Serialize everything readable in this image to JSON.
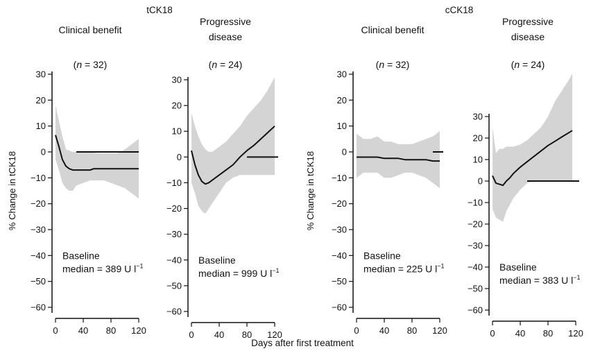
{
  "group_titles": [
    "tCK18",
    "cCK18"
  ],
  "x_axis_label": "Days after first treatment",
  "colors": {
    "band": "#d4d4d4",
    "line": "#111111",
    "axis": "#111111"
  },
  "chart_data": [
    {
      "type": "area",
      "group": "tCK18",
      "title": [
        "Clinical benefit"
      ],
      "n_label": [
        "(",
        "n",
        " = 32)"
      ],
      "ylabel": "% Change in tCK18",
      "xlim": [
        -5,
        125
      ],
      "ylim": [
        -62,
        32
      ],
      "xticks": [
        0,
        40,
        80,
        120
      ],
      "yticks": [
        30,
        20,
        10,
        0,
        -10,
        -20,
        -30,
        -40,
        -50,
        -60
      ],
      "baseline_line": "Baseline",
      "median_label": "median = 389 U l",
      "median_sup": "−1",
      "series": [
        {
          "x": [
            0,
            5,
            10,
            15,
            20,
            25,
            30,
            40,
            50,
            55,
            60,
            70,
            80,
            90,
            100,
            110,
            120
          ],
          "y": [
            6.5,
            2,
            -3,
            -5.5,
            -6.5,
            -7,
            -7,
            -7,
            -7,
            -6.5,
            -6.5,
            -6.5,
            -6.5,
            -6.5,
            -6.5,
            -6.5,
            -6.5
          ]
        }
      ],
      "band": {
        "x": [
          0,
          5,
          10,
          15,
          20,
          25,
          30,
          40,
          50,
          60,
          70,
          80,
          90,
          100,
          110,
          120
        ],
        "upper": [
          18,
          12,
          6,
          1,
          0.5,
          0,
          0,
          0,
          0,
          -0.5,
          -0.5,
          -0.5,
          -0.5,
          1,
          3,
          5
        ],
        "lower": [
          -3,
          -7,
          -12,
          -14,
          -15,
          -15,
          -13,
          -12,
          -11,
          -11,
          -11,
          -12,
          -13,
          -14,
          -16,
          -18
        ]
      },
      "zero_line": [
        30,
        120
      ]
    },
    {
      "type": "area",
      "group": "tCK18",
      "title": [
        "Progressive",
        "disease"
      ],
      "n_label": [
        "(",
        "n",
        " = 24)"
      ],
      "ylabel": "",
      "xlim": [
        -5,
        125
      ],
      "ylim": [
        -62,
        32
      ],
      "xticks": [
        0,
        40,
        80,
        120
      ],
      "yticks": [
        30,
        20,
        10,
        0,
        -10,
        -20,
        -30,
        -40,
        -50,
        -60
      ],
      "baseline_line": "Baseline",
      "median_label": "median = 999 U l",
      "median_sup": "−1",
      "series": [
        {
          "x": [
            0,
            5,
            10,
            15,
            20,
            25,
            30,
            40,
            50,
            60,
            70,
            80,
            90,
            100,
            110,
            120
          ],
          "y": [
            2.5,
            -3,
            -7,
            -9.5,
            -10.5,
            -10,
            -9,
            -7,
            -5,
            -3,
            0,
            2.5,
            4.5,
            7,
            9.5,
            12
          ]
        }
      ],
      "band": {
        "x": [
          0,
          5,
          10,
          15,
          20,
          25,
          30,
          40,
          50,
          60,
          70,
          80,
          90,
          100,
          110,
          120
        ],
        "upper": [
          17,
          12,
          8,
          5,
          3,
          2,
          2,
          4,
          6,
          9,
          12,
          16,
          19,
          22,
          26,
          31
        ],
        "lower": [
          -10,
          -14,
          -19,
          -21,
          -22,
          -20,
          -18,
          -14,
          -10,
          -8,
          -7,
          -7,
          -7,
          -7,
          -7,
          -7
        ]
      },
      "zero_line": [
        80,
        125
      ]
    },
    {
      "type": "area",
      "group": "cCK18",
      "title": [
        "Clinical benefit"
      ],
      "n_label": [
        "(",
        "n",
        " = 32)"
      ],
      "ylabel": "% Change in tCK18",
      "xlim": [
        -5,
        125
      ],
      "ylim": [
        -62,
        32
      ],
      "xticks": [
        0,
        40,
        80,
        120
      ],
      "yticks": [
        30,
        20,
        10,
        0,
        -10,
        -20,
        -30,
        -40,
        -50,
        -60
      ],
      "baseline_line": "Baseline",
      "median_label": "median = 225 U l",
      "median_sup": "−1",
      "series": [
        {
          "x": [
            0,
            10,
            20,
            30,
            40,
            50,
            60,
            70,
            80,
            90,
            100,
            110,
            120
          ],
          "y": [
            -2,
            -2,
            -2,
            -2,
            -2.5,
            -2.5,
            -2.5,
            -3,
            -3,
            -3,
            -3,
            -3.5,
            -3.5
          ]
        }
      ],
      "band": {
        "x": [
          0,
          10,
          20,
          30,
          40,
          50,
          60,
          70,
          80,
          90,
          100,
          110,
          120
        ],
        "upper": [
          7,
          5,
          5,
          6,
          4,
          4,
          3,
          3,
          3,
          4,
          5,
          6,
          8
        ],
        "lower": [
          -10,
          -8,
          -8,
          -8,
          -10,
          -10,
          -9,
          -8,
          -8,
          -9,
          -10,
          -12,
          -14
        ]
      },
      "zero_line": [
        110,
        125
      ]
    },
    {
      "type": "area",
      "group": "cCK18",
      "title": [
        "Progressive",
        "disease"
      ],
      "n_label": [
        "(",
        "n",
        " = 24)"
      ],
      "ylabel": "",
      "xlim": [
        -5,
        125
      ],
      "ylim": [
        -62,
        32
      ],
      "xticks": [
        0,
        40,
        80,
        120
      ],
      "yticks": [
        30,
        20,
        10,
        0,
        -10,
        -20,
        -30,
        -40,
        -50,
        -60
      ],
      "baseline_line": "Baseline",
      "median_label": "median = 383 U l",
      "median_sup": "−1",
      "series": [
        {
          "x": [
            0,
            5,
            10,
            15,
            20,
            25,
            30,
            40,
            50,
            60,
            70,
            80,
            90,
            100,
            110,
            115
          ],
          "y": [
            2.5,
            -1,
            -1.5,
            -2,
            0,
            1.5,
            3.5,
            6.5,
            9,
            11.5,
            14,
            16.5,
            18.5,
            20.5,
            22.5,
            23.5
          ]
        }
      ],
      "band": {
        "x": [
          0,
          5,
          10,
          15,
          20,
          25,
          30,
          40,
          50,
          60,
          70,
          80,
          90,
          100,
          110,
          115
        ],
        "upper": [
          25,
          13,
          15,
          15,
          16,
          16,
          16,
          17,
          19,
          22,
          25,
          30,
          37,
          42,
          47,
          50
        ],
        "lower": [
          -13,
          -17,
          -18,
          -19,
          -14,
          -11,
          -8,
          -4,
          -1,
          0,
          0,
          0,
          0,
          0,
          0,
          0
        ]
      },
      "zero_line": [
        50,
        125
      ]
    }
  ]
}
